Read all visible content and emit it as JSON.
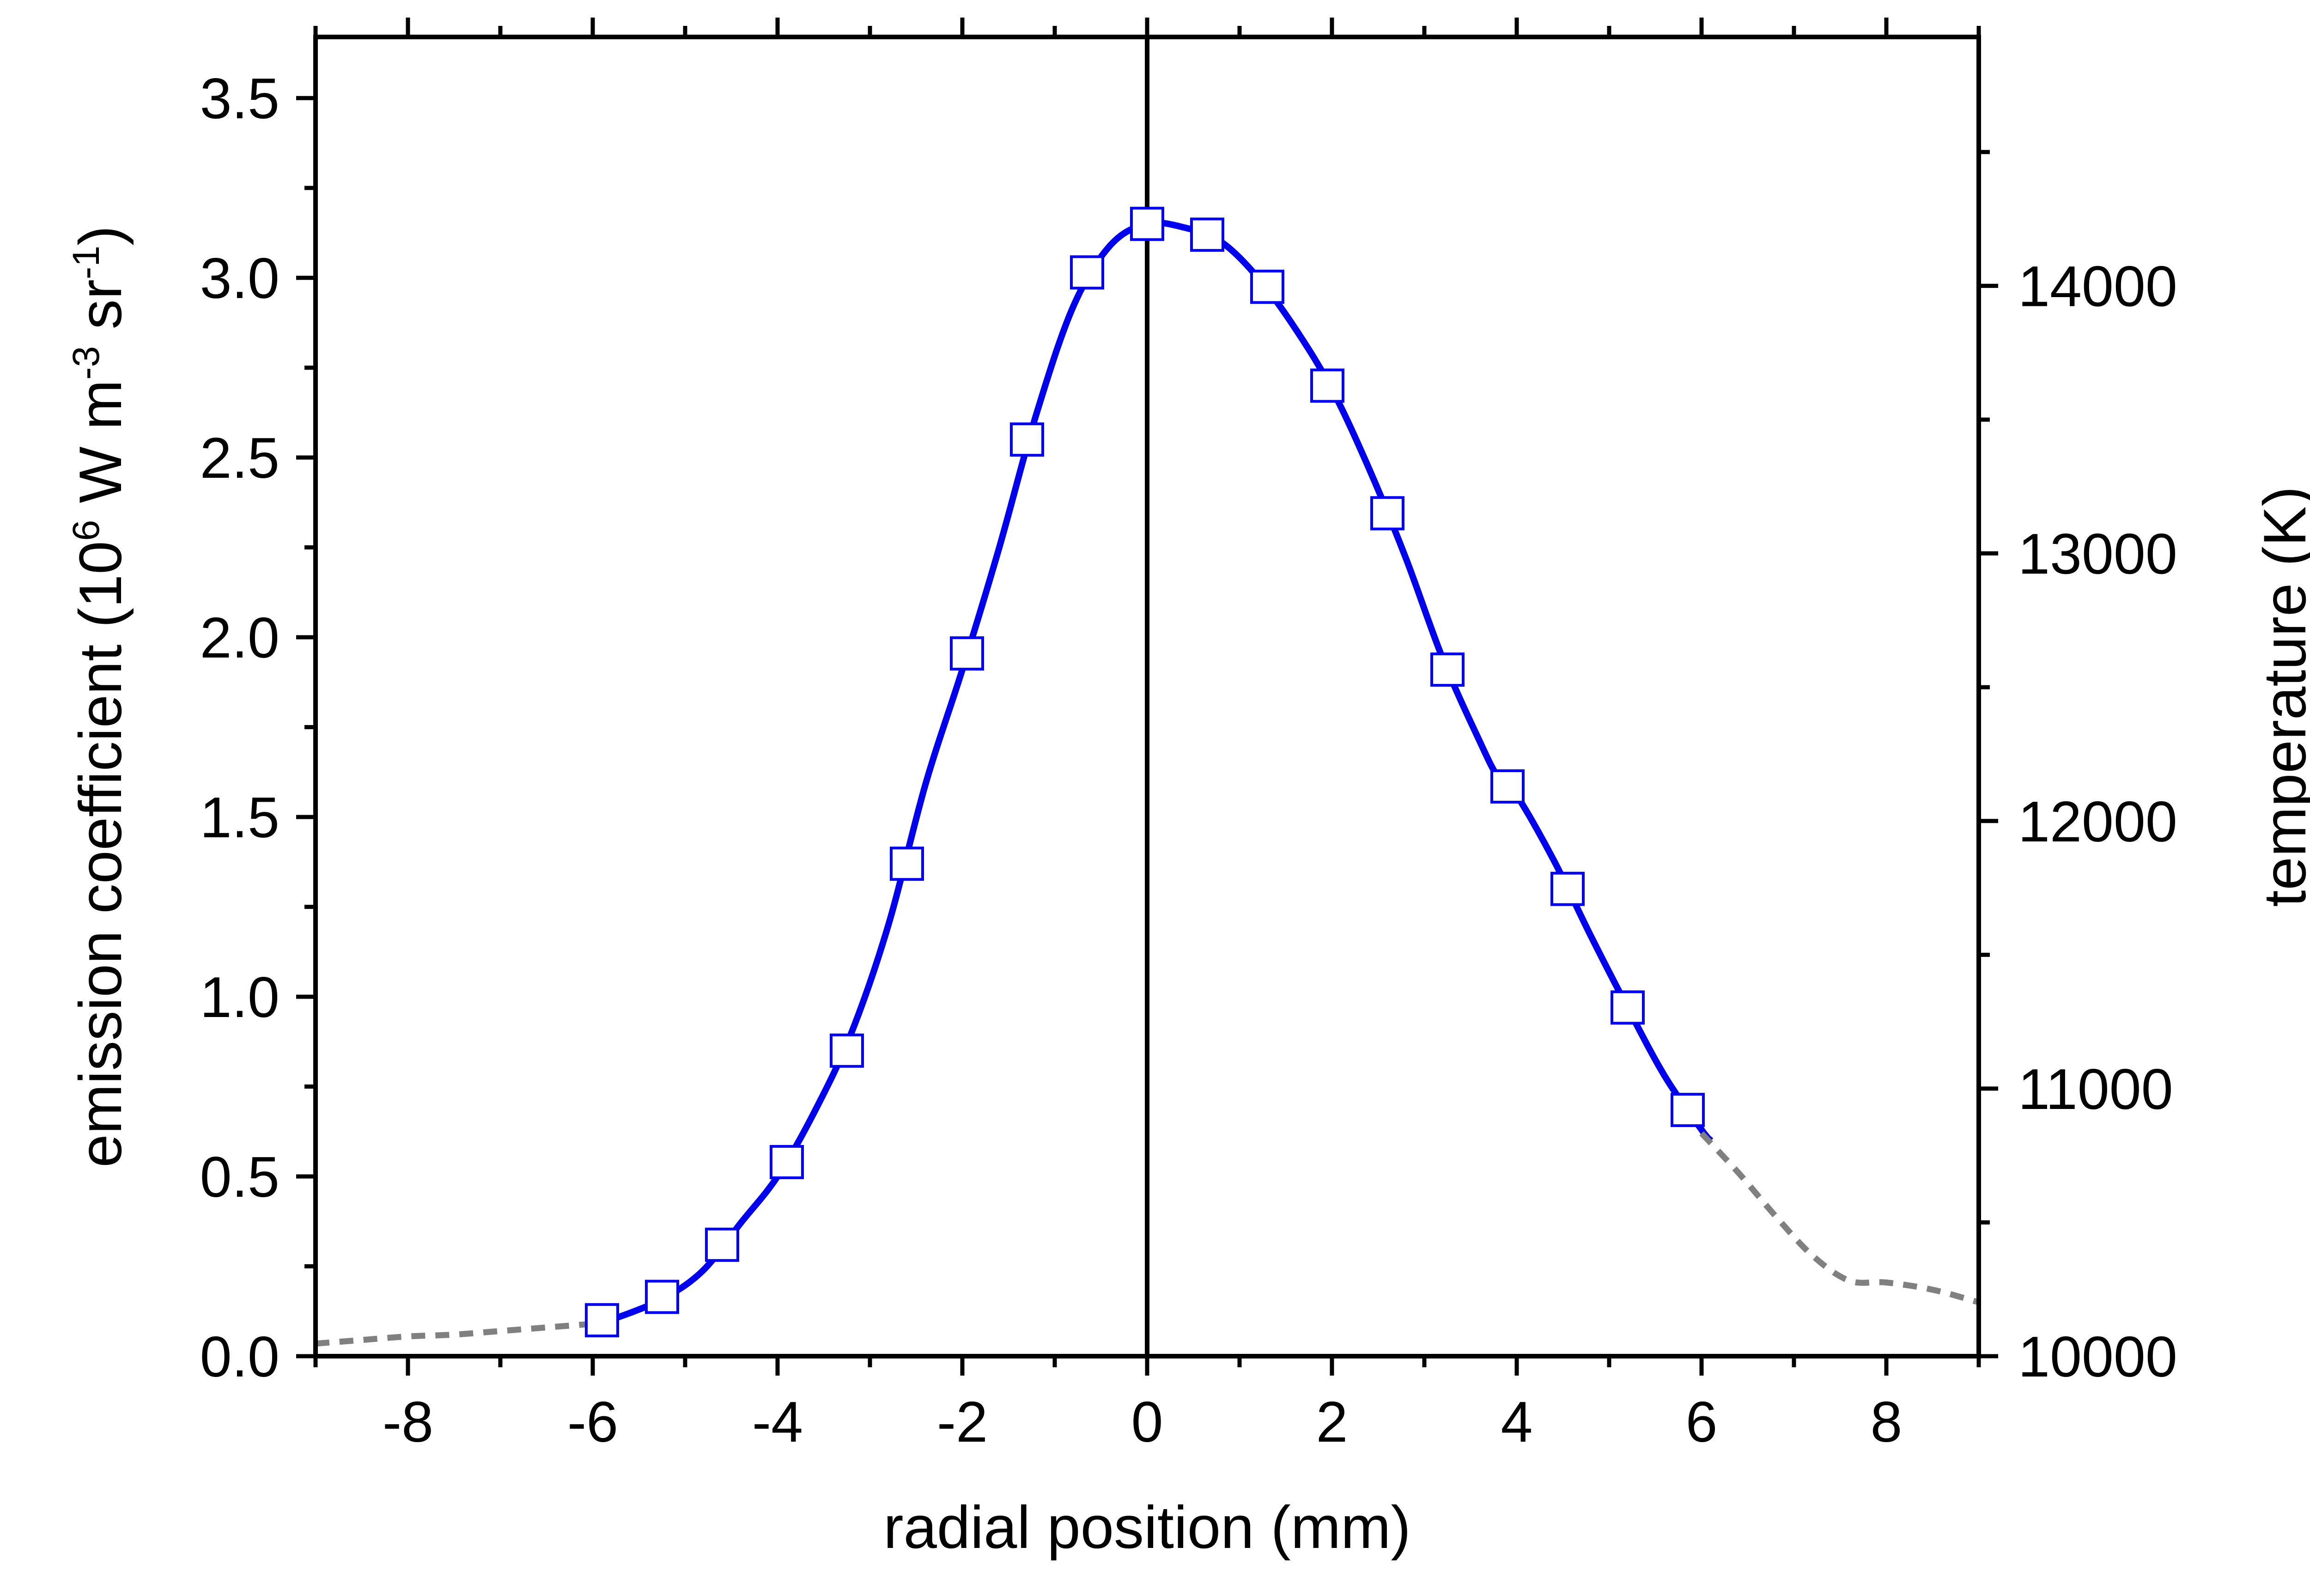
{
  "chart_data": {
    "type": "line",
    "xlabel": "radial position (mm)",
    "ylabel": {
      "before": "emission coefficient (10",
      "sup1": "6",
      "mid1": " W m",
      "sup2": "-3",
      "mid2": " sr",
      "sup3": "-1",
      "after": ")"
    },
    "y2label": "temperature (K)",
    "xlim": [
      -9,
      9
    ],
    "ylim": [
      0,
      3.67
    ],
    "y2lim": [
      10000,
      14930
    ],
    "x_ticks": [
      -8,
      -6,
      -4,
      -2,
      0,
      2,
      4,
      6,
      8
    ],
    "x_tick_labels": [
      "-8",
      "-6",
      "-4",
      "-2",
      "0",
      "2",
      "4",
      "6",
      "8"
    ],
    "y_ticks": [
      0,
      0.5,
      1,
      1.5,
      2,
      2.5,
      3,
      3.5
    ],
    "y_tick_labels": [
      "0.0",
      "0.5",
      "1.0",
      "1.5",
      "2.0",
      "2.5",
      "3.0",
      "3.5"
    ],
    "y2_ticks": [
      10000,
      11000,
      12000,
      13000,
      14000
    ],
    "y2_tick_labels": [
      "10000",
      "11000",
      "12000",
      "13000",
      "14000"
    ],
    "grid": false,
    "vertical_line_x": 0,
    "series": [
      {
        "style": "markers",
        "marker": "open-square",
        "color": "#0000ee",
        "x": [
          -5.9,
          -5.25,
          -4.6,
          -3.9,
          -3.25,
          -2.6,
          -1.95,
          -1.3,
          -0.65,
          0,
          0.65,
          1.3,
          1.95,
          2.6,
          3.25,
          3.9,
          4.55,
          5.2,
          5.85
        ],
        "y": [
          0.1,
          0.165,
          0.31,
          0.54,
          0.85,
          1.37,
          1.955,
          2.55,
          3.015,
          3.15,
          3.12,
          2.975,
          2.7,
          2.345,
          1.91,
          1.585,
          1.3,
          0.97,
          0.685
        ]
      },
      {
        "style": "solid-line",
        "color": "#0000ee",
        "x": [
          -6.0,
          -5.6,
          -5.2,
          -4.8,
          -4.4,
          -4.0,
          -3.6,
          -3.2,
          -2.8,
          -2.4,
          -2.0,
          -1.6,
          -1.2,
          -0.8,
          -0.4,
          0,
          0.4,
          0.8,
          1.2,
          1.6,
          2.0,
          2.4,
          2.8,
          3.2,
          3.6,
          3.8,
          4.0,
          4.4,
          4.8,
          5.2,
          5.6,
          6.0,
          6.1
        ],
        "y": [
          0.085,
          0.12,
          0.165,
          0.24,
          0.37,
          0.5,
          0.68,
          0.9,
          1.2,
          1.59,
          1.91,
          2.25,
          2.62,
          2.92,
          3.09,
          3.15,
          3.14,
          3.1,
          3.0,
          2.86,
          2.69,
          2.47,
          2.22,
          1.94,
          1.71,
          1.61,
          1.56,
          1.38,
          1.17,
          0.97,
          0.78,
          0.63,
          0.6
        ]
      },
      {
        "style": "dashed-line",
        "color": "#808080",
        "x": [
          -9.0,
          -8.5,
          -8.0,
          -7.5,
          -7.0,
          -6.5,
          -6.0
        ],
        "y": [
          0.035,
          0.045,
          0.055,
          0.06,
          0.07,
          0.08,
          0.09
        ]
      },
      {
        "style": "dashed-line",
        "color": "#808080",
        "x": [
          6.0,
          6.4,
          6.8,
          7.2,
          7.6,
          8.0,
          8.5,
          9.0
        ],
        "y": [
          0.62,
          0.51,
          0.39,
          0.28,
          0.21,
          0.205,
          0.185,
          0.15
        ]
      }
    ]
  }
}
